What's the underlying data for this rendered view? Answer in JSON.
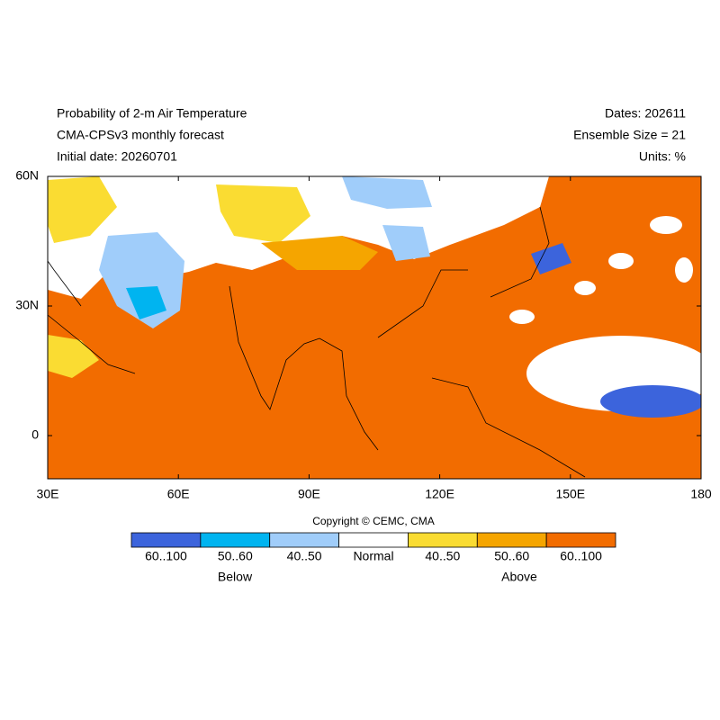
{
  "header": {
    "title": "Probability of 2-m Air Temperature",
    "subtitle": "CMA-CPSv3 monthly forecast",
    "initial_date": "Initial date: 20260701",
    "dates": "Dates: 202611",
    "ensemble_size": "Ensemble Size = 21",
    "units": "Units: %"
  },
  "map": {
    "xlim": [
      30,
      180
    ],
    "ylim": [
      -10,
      60
    ],
    "xticks": [
      {
        "value": 30,
        "label": "30E"
      },
      {
        "value": 60,
        "label": "60E"
      },
      {
        "value": 90,
        "label": "90E"
      },
      {
        "value": 120,
        "label": "120E"
      },
      {
        "value": 150,
        "label": "150E"
      },
      {
        "value": 180,
        "label": "180"
      }
    ],
    "yticks": [
      {
        "value": 0,
        "label": "0"
      },
      {
        "value": 30,
        "label": "30N"
      },
      {
        "value": 60,
        "label": "60N"
      }
    ]
  },
  "colorbar": {
    "labels": [
      "60..100",
      "50..60",
      "40..50",
      "Normal",
      "40..50",
      "50..60",
      "60..100"
    ],
    "colors": [
      "#3c64dc",
      "#00b4f0",
      "#a0cdfa",
      "#ffffff",
      "#fadc32",
      "#f5a500",
      "#f26c00"
    ],
    "below": "Below",
    "above": "Above"
  },
  "copyright": "Copyright © CEMC, CMA"
}
